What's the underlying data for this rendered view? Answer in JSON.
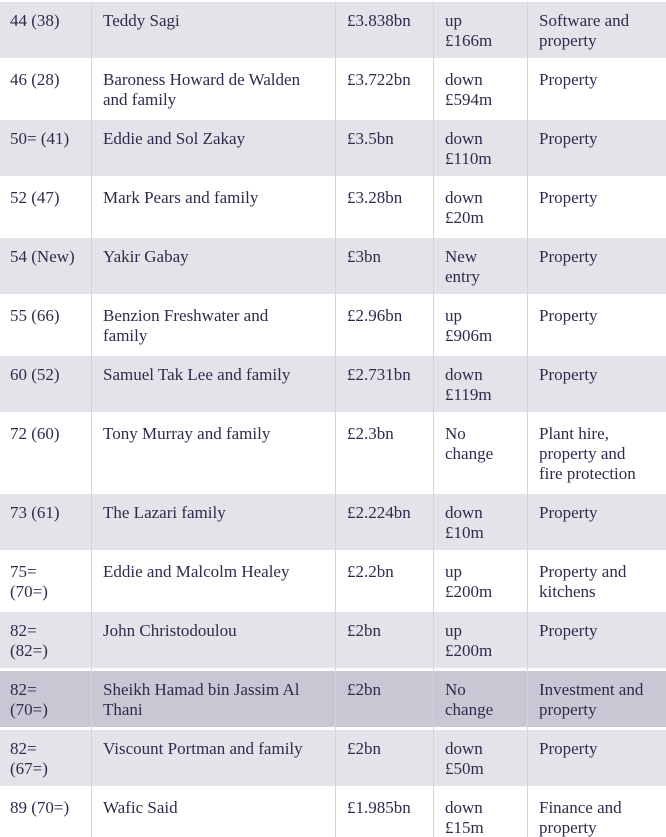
{
  "theme": {
    "text_color": "#2e2b4d",
    "row_gray": "#e4e3ea",
    "row_highlight": "#c9c7d4",
    "divider_color": "#d5d4dd",
    "row_gap_color": "#ffffff"
  },
  "table": {
    "column_keys": [
      "rank",
      "name",
      "worth",
      "change",
      "source"
    ],
    "rows": [
      {
        "rank": "44 (38)",
        "name": "Teddy Sagi",
        "worth": "£3.838bn",
        "change": "up\n£166m",
        "source": "Software and\nproperty",
        "highlighted": false
      },
      {
        "rank": "46 (28)",
        "name": "Baroness Howard de Walden\nand family",
        "worth": "£3.722bn",
        "change": "down\n£594m",
        "source": "Property",
        "highlighted": false
      },
      {
        "rank": "50= (41)",
        "name": "Eddie and Sol Zakay",
        "worth": "£3.5bn",
        "change": "down\n£110m",
        "source": "Property",
        "highlighted": false
      },
      {
        "rank": "52 (47)",
        "name": "Mark Pears and family",
        "worth": "£3.28bn",
        "change": "down\n£20m",
        "source": "Property",
        "highlighted": false
      },
      {
        "rank": "54 (New)",
        "name": "Yakir Gabay",
        "worth": "£3bn",
        "change": "New\nentry",
        "source": "Property",
        "highlighted": false
      },
      {
        "rank": "55 (66)",
        "name": "Benzion Freshwater and\nfamily",
        "worth": "£2.96bn",
        "change": "up\n£906m",
        "source": "Property",
        "highlighted": false
      },
      {
        "rank": "60 (52)",
        "name": "Samuel Tak Lee and family",
        "worth": "£2.731bn",
        "change": "down\n£119m",
        "source": "Property",
        "highlighted": false
      },
      {
        "rank": "72 (60)",
        "name": "Tony Murray and family",
        "worth": "£2.3bn",
        "change": "No\nchange",
        "source": "Plant hire,\nproperty and\nfire protection",
        "highlighted": false
      },
      {
        "rank": "73 (61)",
        "name": "The Lazari family",
        "worth": "£2.224bn",
        "change": "down\n£10m",
        "source": "Property",
        "highlighted": false
      },
      {
        "rank": "75=\n(70=)",
        "name": "Eddie and Malcolm Healey",
        "worth": "£2.2bn",
        "change": "up\n£200m",
        "source": "Property and\nkitchens",
        "highlighted": false
      },
      {
        "rank": "82=\n(82=)",
        "name": "John Christodoulou",
        "worth": "£2bn",
        "change": "up\n£200m",
        "source": "Property",
        "highlighted": false
      },
      {
        "rank": "82=\n(70=)",
        "name": "Sheikh Hamad bin Jassim Al\nThani",
        "worth": "£2bn",
        "change": "No\nchange",
        "source": "Investment and\nproperty",
        "highlighted": true
      },
      {
        "rank": "82=\n(67=)",
        "name": "Viscount Portman and family",
        "worth": "£2bn",
        "change": "down\n£50m",
        "source": "Property",
        "highlighted": false
      },
      {
        "rank": "89 (70=)",
        "name": "Wafic Said",
        "worth": "£1.985bn",
        "change": "down\n£15m",
        "source": "Finance and\nproperty",
        "highlighted": false
      }
    ]
  }
}
